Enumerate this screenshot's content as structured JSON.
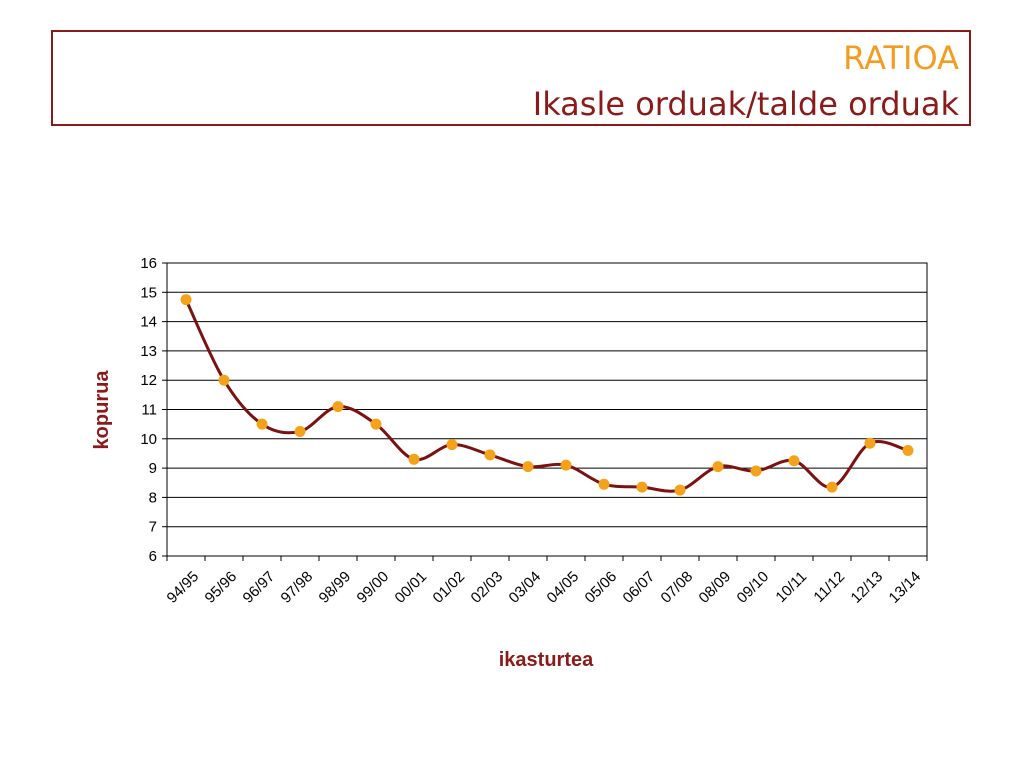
{
  "header": {
    "title": "RATIOA",
    "subtitle": "Ikasle orduak/talde orduak"
  },
  "colors": {
    "title": "#f39c1f",
    "subtitle": "#8b1a1a",
    "line": "#7b1111",
    "marker": "#f5a21b",
    "axis_label": "#8b1a1a"
  },
  "chart_data": {
    "type": "line",
    "xlabel": "ikasturtea",
    "ylabel": "kopurua",
    "ylim": [
      6,
      16
    ],
    "yticks": [
      6,
      7,
      8,
      9,
      10,
      11,
      12,
      13,
      14,
      15,
      16
    ],
    "grid": true,
    "categories": [
      "94/95",
      "95/96",
      "96/97",
      "97/98",
      "98/99",
      "99/00",
      "00/01",
      "01/02",
      "02/03",
      "03/04",
      "04/05",
      "05/06",
      "06/07",
      "07/08",
      "08/09",
      "09/10",
      "10/11",
      "11/12",
      "12/13",
      "13/14"
    ],
    "series": [
      {
        "values": [
          14.75,
          12.0,
          10.5,
          10.25,
          11.1,
          10.5,
          9.3,
          9.8,
          9.45,
          9.05,
          9.1,
          8.45,
          8.35,
          8.25,
          9.05,
          8.9,
          9.25,
          8.35,
          9.85,
          9.6
        ]
      }
    ]
  }
}
